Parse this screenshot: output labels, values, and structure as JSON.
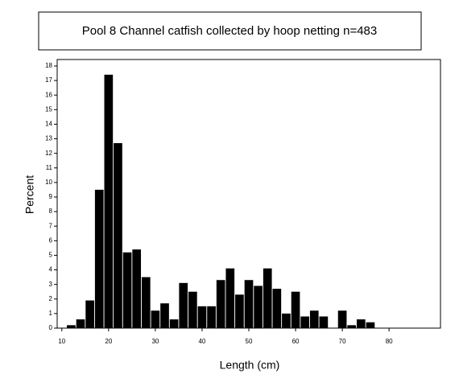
{
  "chart_data": {
    "type": "bar",
    "title": "Pool 8 Channel catfish collected by hoop netting n=483",
    "x_label": "Length (cm)",
    "y_label": "Percent",
    "x": [
      12,
      14,
      16,
      18,
      20,
      22,
      24,
      26,
      28,
      30,
      32,
      34,
      36,
      38,
      40,
      42,
      44,
      46,
      48,
      50,
      52,
      54,
      56,
      58,
      60,
      62,
      64,
      66,
      70,
      72,
      74,
      76
    ],
    "values": [
      0.2,
      0.6,
      1.9,
      9.5,
      17.4,
      12.7,
      5.2,
      5.4,
      3.5,
      1.2,
      1.7,
      0.6,
      3.1,
      2.5,
      1.5,
      1.5,
      3.3,
      4.1,
      2.3,
      3.3,
      2.9,
      4.1,
      2.7,
      1.0,
      2.5,
      0.8,
      1.2,
      0.8,
      1.2,
      0.2,
      0.6,
      0.4
    ],
    "color": "#000000",
    "xlim": [
      9,
      91
    ],
    "xticks": [
      10,
      20,
      30,
      40,
      50,
      60,
      70,
      80
    ],
    "ylim": [
      0,
      18
    ],
    "yticks": [
      0,
      1,
      2,
      3,
      4,
      5,
      6,
      7,
      8,
      9,
      10,
      11,
      12,
      13,
      14,
      15,
      16,
      17,
      18
    ]
  }
}
